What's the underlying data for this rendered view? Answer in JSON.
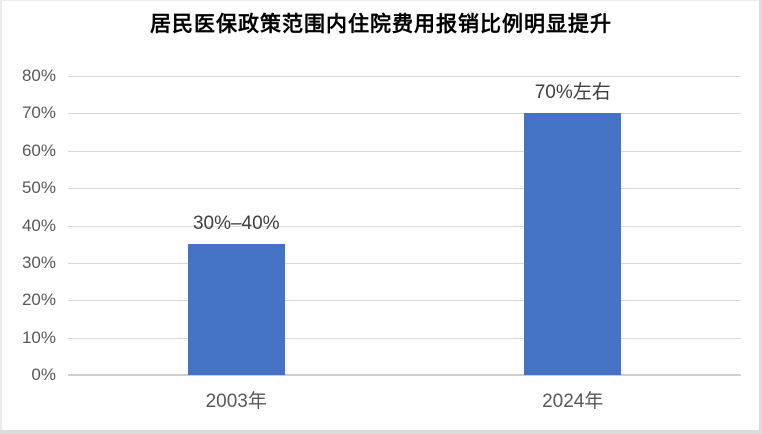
{
  "chart_data": {
    "type": "bar",
    "title": "居民医保政策范围内住院费用报销比例明显提升",
    "categories": [
      "2003年",
      "2024年"
    ],
    "values": [
      35,
      70
    ],
    "data_labels": [
      "30%–40%",
      "70%左右"
    ],
    "xlabel": "",
    "ylabel": "",
    "ylim": [
      0,
      80
    ],
    "ytick_step": 10,
    "ytick_labels": [
      "0%",
      "10%",
      "20%",
      "30%",
      "40%",
      "50%",
      "60%",
      "70%",
      "80%"
    ],
    "ytick_values": [
      0,
      10,
      20,
      30,
      40,
      50,
      60,
      70,
      80
    ],
    "grid": true,
    "legend_position": "none"
  },
  "colors": {
    "bar": "#4472C4",
    "gridline": "#D9D9D9",
    "axis_line": "#CFCFCF",
    "tick_label": "#595959",
    "category_label": "#595959",
    "data_label": "#3F3F3F",
    "title": "#000000",
    "background": "#FFFFFF"
  }
}
